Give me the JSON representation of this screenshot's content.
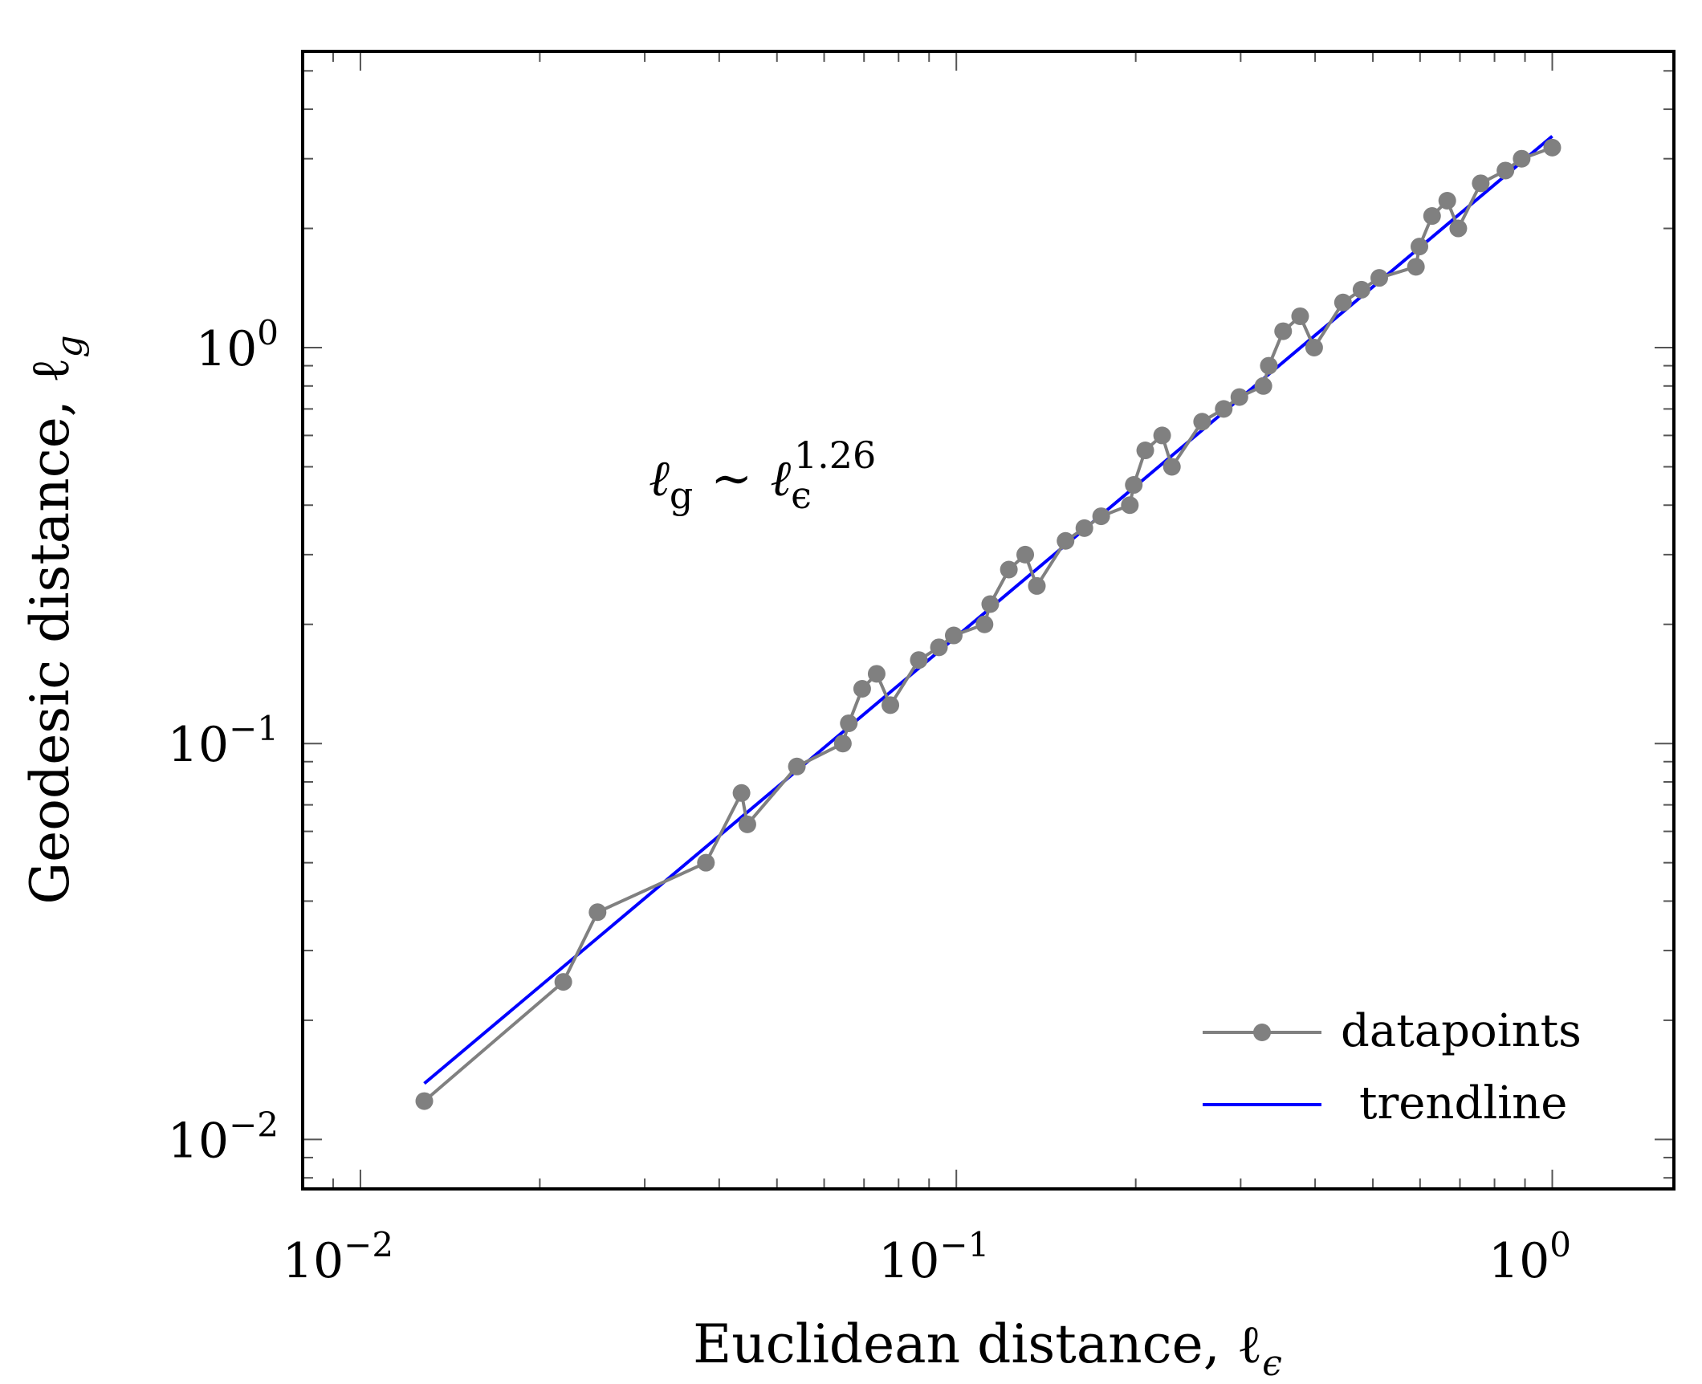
{
  "chart_data": {
    "type": "line",
    "scale": {
      "x": "log",
      "y": "log"
    },
    "xlim": [
      0.008,
      1.6
    ],
    "ylim": [
      0.0075,
      5.6
    ],
    "xlabel": "Euclidean distance, ℓ",
    "xlabel_sub": "ϵ",
    "ylabel": "Geodesic distance, ℓ",
    "ylabel_sub": "g",
    "annotation": {
      "lhs": "ℓ",
      "lhs_sub": "g",
      "op": "∼",
      "rhs": "ℓ",
      "rhs_sub": "ϵ",
      "exponent": "1.26"
    },
    "x_ticks": [
      {
        "value": 0.01,
        "base": "10",
        "exp": "−2"
      },
      {
        "value": 0.1,
        "base": "10",
        "exp": "−1"
      },
      {
        "value": 1,
        "base": "10",
        "exp": "0"
      }
    ],
    "y_ticks": [
      {
        "value": 0.01,
        "base": "10",
        "exp": "−2"
      },
      {
        "value": 0.1,
        "base": "10",
        "exp": "−1"
      },
      {
        "value": 1,
        "base": "10",
        "exp": "0"
      }
    ],
    "series": [
      {
        "name": "datapoints",
        "color": "#808080",
        "marker": "circle",
        "x": [
          0.0128,
          0.0219,
          0.025,
          0.038,
          0.0436,
          0.0446,
          0.054,
          0.0645,
          0.066,
          0.0695,
          0.0735,
          0.0775,
          0.0865,
          0.0935,
          0.099,
          0.1115,
          0.114,
          0.1225,
          0.1305,
          0.1365,
          0.1525,
          0.164,
          0.175,
          0.1955,
          0.1985,
          0.2075,
          0.2215,
          0.23,
          0.2585,
          0.281,
          0.2985,
          0.3275,
          0.3345,
          0.3535,
          0.3775,
          0.3985,
          0.4455,
          0.4785,
          0.5125,
          0.5905,
          0.5985,
          0.6285,
          0.6665,
          0.6955,
          0.7585,
          0.8345,
          0.8885,
          1.0
        ],
        "y": [
          0.0125,
          0.025,
          0.0375,
          0.05,
          0.075,
          0.0625,
          0.0875,
          0.1,
          0.1125,
          0.1375,
          0.15,
          0.125,
          0.1625,
          0.175,
          0.1875,
          0.2,
          0.225,
          0.275,
          0.3,
          0.25,
          0.325,
          0.35,
          0.375,
          0.4,
          0.45,
          0.55,
          0.6,
          0.5,
          0.65,
          0.7,
          0.75,
          0.8,
          0.9,
          1.1,
          1.2,
          1.0,
          1.3,
          1.4,
          1.5,
          1.6,
          1.8,
          2.15,
          2.35,
          2.0,
          2.6,
          2.8,
          3.0,
          3.2
        ]
      },
      {
        "name": "trendline",
        "color": "#0000ff",
        "marker": "none",
        "x": [
          0.0128,
          1.0
        ],
        "y": [
          0.01385,
          3.42
        ]
      }
    ],
    "legend": {
      "position": "bottom-right",
      "entries": [
        "datapoints",
        "trendline"
      ]
    },
    "grid": false
  }
}
